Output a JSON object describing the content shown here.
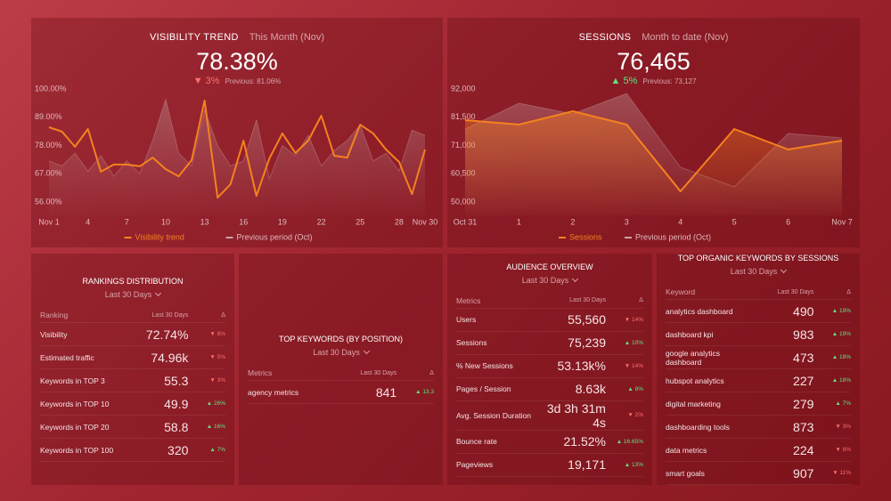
{
  "chart_data": [
    {
      "type": "line",
      "title": "VISIBILITY TREND",
      "subtitle": "This Month (Nov)",
      "kpi": {
        "value": "78.38%",
        "change": "▼ 3%",
        "previous": "Previous: 81.06%"
      },
      "categories": [
        "Nov 1",
        null,
        null,
        "4",
        null,
        null,
        "7",
        null,
        null,
        "10",
        null,
        null,
        "13",
        null,
        null,
        "16",
        null,
        null,
        "19",
        null,
        null,
        "22",
        null,
        null,
        "25",
        null,
        null,
        "28",
        null,
        "Nov 30"
      ],
      "series": [
        {
          "name": "Visibility trend",
          "color": "#f5821f",
          "area": false,
          "values": [
            85.1,
            83.4,
            77.5,
            84.4,
            67.8,
            70.6,
            70.6,
            69.9,
            73.3,
            68.8,
            66.0,
            72.3,
            95.5,
            57.7,
            62.9,
            79.9,
            58.4,
            73.0,
            82.7,
            75.1,
            79.9,
            89.6,
            74.0,
            73.3,
            86.1,
            82.7,
            76.4,
            71.6,
            59.1,
            76.4
          ]
        },
        {
          "name": "Previous period (Oct)",
          "color": "#c9a3a7",
          "area": true,
          "values": [
            72,
            70,
            75,
            68,
            74,
            66,
            72,
            67,
            80,
            96,
            75,
            70,
            92,
            78,
            70,
            72,
            88,
            65,
            78,
            74,
            82,
            70,
            76,
            80,
            86,
            72,
            75,
            68,
            84,
            82
          ]
        }
      ],
      "ylim": [
        56,
        100
      ],
      "yticks": [
        {
          "value": 56,
          "label": "56.00%"
        },
        {
          "value": 67,
          "label": "67.00%"
        },
        {
          "value": 78,
          "label": "78.00%"
        },
        {
          "value": 89,
          "label": "89.00%"
        },
        {
          "value": 100,
          "label": "100.00%"
        }
      ]
    },
    {
      "type": "line",
      "title": "SESSIONS",
      "subtitle": "Month to date (Nov)",
      "kpi": {
        "value": "76,465",
        "change": "▲ 5%",
        "previous": "Previous: 73,127"
      },
      "categories": [
        "Oct 31",
        "1",
        "2",
        "3",
        "4",
        "5",
        "6",
        "Nov 7"
      ],
      "series": [
        {
          "name": "Sessions",
          "color": "#f5821f",
          "area": true,
          "values": [
            80425,
            78770,
            83730,
            78770,
            53970,
            77120,
            69510,
            72820
          ]
        },
        {
          "name": "Previous period (Oct)",
          "color": "#c9a3a7",
          "area": true,
          "values": [
            77120,
            86700,
            82740,
            90340,
            62900,
            55620,
            75460,
            73800
          ]
        }
      ],
      "ylim": [
        50000,
        92000
      ],
      "yticks": [
        {
          "value": 50000,
          "label": "50,000"
        },
        {
          "value": 60500,
          "label": "60,500"
        },
        {
          "value": 71000,
          "label": "71,000"
        },
        {
          "value": 81500,
          "label": "81,500"
        },
        {
          "value": 92000,
          "label": "92,000"
        }
      ]
    }
  ],
  "tables": [
    {
      "title": "RANKINGS DISTRIBUTION",
      "subtitle": "Last 30 Days",
      "columns": [
        "Ranking",
        "Last 30 Days",
        "Δ"
      ],
      "rows": [
        [
          "Visibility",
          "72.74%",
          "▼ 8%"
        ],
        [
          "Estimated traffic",
          "74.96k",
          "▼ 5%"
        ],
        [
          "Keywords in TOP 3",
          "55.3",
          "▼ 3%"
        ],
        [
          "Keywords in TOP 10",
          "49.9",
          "▲ 26%"
        ],
        [
          "Keywords in TOP 20",
          "58.8",
          "▲ 16%"
        ],
        [
          "Keywords in TOP 100",
          "320",
          "▲ 7%"
        ]
      ]
    },
    {
      "title": "TOP KEYWORDS (BY POSITION)",
      "subtitle": "Last 30 Days",
      "columns": [
        "Metrics",
        "Last 30 Days",
        "Δ"
      ],
      "rows": [
        [
          "agency metrics",
          "841",
          "▲ 13.3"
        ]
      ]
    },
    {
      "title": "AUDIENCE OVERVIEW",
      "subtitle": "Last 30 Days",
      "columns": [
        "Metrics",
        "Last 30 Days",
        "Δ"
      ],
      "rows": [
        [
          "Users",
          "55,560",
          "▼ 14%"
        ],
        [
          "Sessions",
          "75,239",
          "▲ 10%"
        ],
        [
          "% New Sessions",
          "53.13k%",
          "▼ 14%"
        ],
        [
          "Pages / Session",
          "8.63k",
          "▲ 8%"
        ],
        [
          "Avg. Session Duration",
          "3d 3h 31m 4s",
          "▼ 2%"
        ],
        [
          "Bounce rate",
          "21.52%",
          "▲ 16.65%"
        ],
        [
          "Pageviews",
          "19,171",
          "▲ 13%"
        ]
      ]
    },
    {
      "title": "TOP ORGANIC KEYWORDS BY SESSIONS",
      "subtitle": "Last 30 Days",
      "columns": [
        "Keyword",
        "Last 30 Days",
        "Δ"
      ],
      "rows": [
        [
          "analytics dashboard",
          "490",
          "▲ 19%"
        ],
        [
          "dashboard kpi",
          "983",
          "▲ 19%"
        ],
        [
          "google analytics dashboard",
          "473",
          "▲ 18%"
        ],
        [
          "hubspot analytics",
          "227",
          "▲ 18%"
        ],
        [
          "digital marketing",
          "279",
          "▲ 7%"
        ],
        [
          "dashboarding tools",
          "873",
          "▼ 3%"
        ],
        [
          "data metrics",
          "224",
          "▼ 8%"
        ],
        [
          "smart goals",
          "907",
          "▼ 11%"
        ]
      ]
    }
  ]
}
